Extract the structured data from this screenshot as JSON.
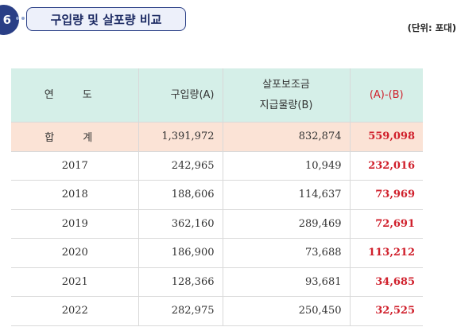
{
  "section": {
    "number": "6",
    "title": "구입량 및 살포량 비교"
  },
  "unit": "(단위: 포대)",
  "table": {
    "headers": {
      "year": "연 도",
      "purchase": "구입량(A)",
      "subsidy_line1": "살포보조금",
      "subsidy_line2": "지급물량(B)",
      "diff": "(A)-(B)"
    },
    "rows": [
      {
        "year": "합 계",
        "purchase": "1,391,972",
        "subsidy": "832,874",
        "diff": "559,098"
      },
      {
        "year": "2017",
        "purchase": "242,965",
        "subsidy": "10,949",
        "diff": "232,016"
      },
      {
        "year": "2018",
        "purchase": "188,606",
        "subsidy": "114,637",
        "diff": "73,969"
      },
      {
        "year": "2019",
        "purchase": "362,160",
        "subsidy": "289,469",
        "diff": "72,691"
      },
      {
        "year": "2020",
        "purchase": "186,900",
        "subsidy": "73,688",
        "diff": "113,212"
      },
      {
        "year": "2021",
        "purchase": "128,366",
        "subsidy": "93,681",
        "diff": "34,685"
      },
      {
        "year": "2022",
        "purchase": "282,975",
        "subsidy": "250,450",
        "diff": "32,525"
      }
    ]
  }
}
